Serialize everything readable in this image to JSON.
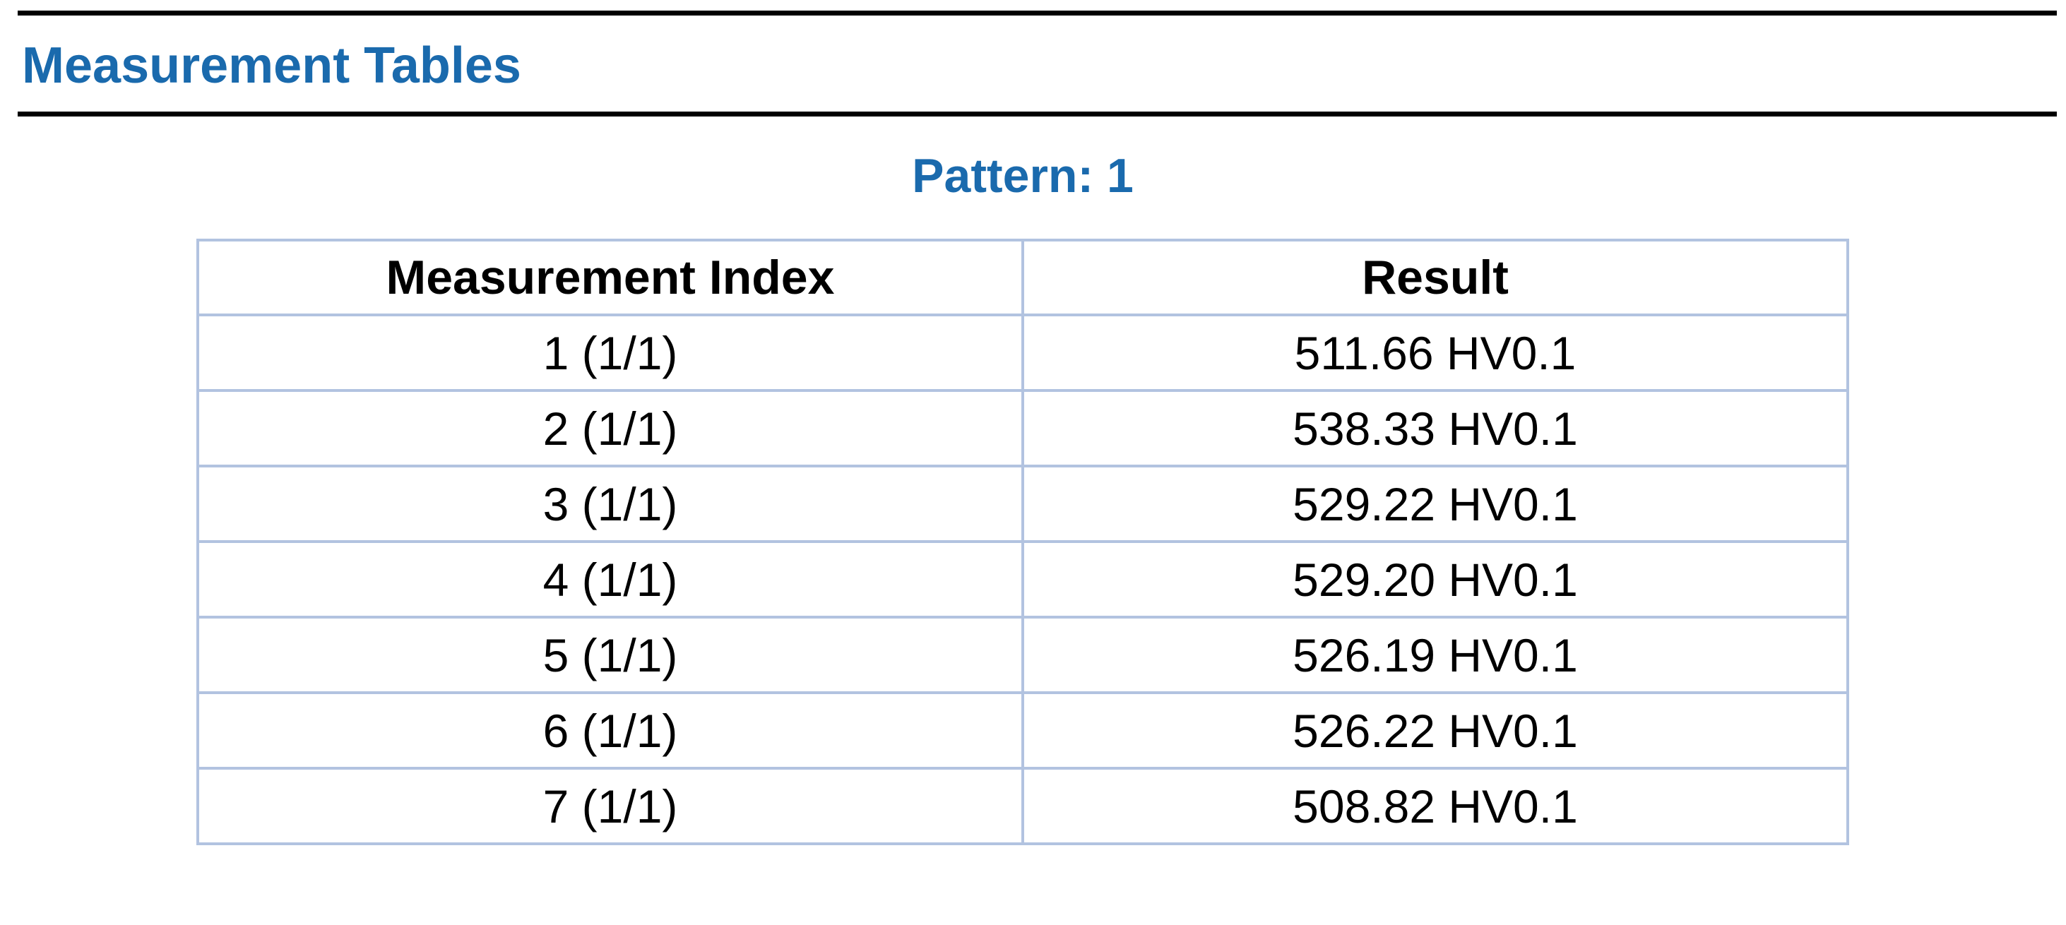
{
  "page": {
    "section_title": "Measurement Tables",
    "pattern_heading": "Pattern: 1"
  },
  "colors": {
    "heading_blue": "#1a6aad",
    "table_border": "#b2c3e0",
    "rule_black": "#000000"
  },
  "table": {
    "headers": [
      "Measurement Index",
      "Result"
    ],
    "rows": [
      [
        "1 (1/1)",
        "511.66 HV0.1"
      ],
      [
        "2 (1/1)",
        "538.33 HV0.1"
      ],
      [
        "3 (1/1)",
        "529.22 HV0.1"
      ],
      [
        "4 (1/1)",
        "529.20 HV0.1"
      ],
      [
        "5 (1/1)",
        "526.19 HV0.1"
      ],
      [
        "6 (1/1)",
        "526.22 HV0.1"
      ],
      [
        "7 (1/1)",
        "508.82 HV0.1"
      ]
    ]
  }
}
